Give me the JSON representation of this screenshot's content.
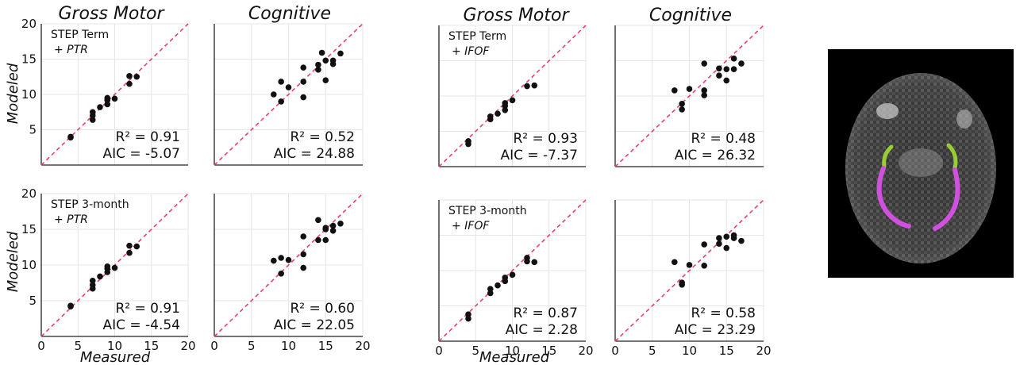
{
  "figure": {
    "group_titles": [
      "Gross Motor",
      "Cognitive",
      "Gross Motor",
      "Cognitive"
    ],
    "ylabel": "Modeled",
    "xlabel": "Measured"
  },
  "chart_data": [
    {
      "id": "term-ptr-gross",
      "type": "scatter",
      "title": "Gross Motor",
      "annotation": [
        "STEP Term",
        "+ PTR"
      ],
      "stats": [
        "R² = 0.91",
        "AIC = -5.07"
      ],
      "xlim": [
        0,
        20
      ],
      "ylim": [
        0,
        20
      ],
      "xticks": [],
      "yticks": [
        5,
        10,
        15,
        20
      ],
      "xlabel": "",
      "ylabel": "Modeled",
      "grid": true,
      "reference_line": "y = x",
      "points": [
        [
          4,
          4
        ],
        [
          4,
          3.9
        ],
        [
          7,
          6.4
        ],
        [
          7,
          7
        ],
        [
          7,
          7.5
        ],
        [
          8,
          8.2
        ],
        [
          9,
          8.6
        ],
        [
          9,
          9.2
        ],
        [
          9,
          9.5
        ],
        [
          10,
          9.4
        ],
        [
          12,
          11.5
        ],
        [
          12,
          12.6
        ],
        [
          13,
          12.5
        ]
      ]
    },
    {
      "id": "term-ptr-cog",
      "type": "scatter",
      "title": "Cognitive",
      "annotation": [],
      "stats": [
        "R² = 0.52",
        "AIC = 24.88"
      ],
      "xlim": [
        0,
        20
      ],
      "ylim": [
        0,
        20
      ],
      "xticks": [],
      "yticks": [],
      "xlabel": "",
      "ylabel": "",
      "grid": true,
      "reference_line": "y = x",
      "points": [
        [
          8,
          10
        ],
        [
          9,
          9
        ],
        [
          9,
          11.8
        ],
        [
          10,
          11
        ],
        [
          12,
          9.6
        ],
        [
          12,
          11.8
        ],
        [
          12,
          13.8
        ],
        [
          14,
          13.5
        ],
        [
          14,
          14.2
        ],
        [
          14.5,
          15.9
        ],
        [
          15,
          14.8
        ],
        [
          15,
          12
        ],
        [
          16,
          14.3
        ],
        [
          16,
          14.8
        ],
        [
          17,
          15.8
        ]
      ]
    },
    {
      "id": "m3-ptr-gross",
      "type": "scatter",
      "title": "",
      "annotation": [
        "STEP 3-month",
        "+ PTR"
      ],
      "stats": [
        "R² = 0.91",
        "AIC = -4.54"
      ],
      "xlim": [
        0,
        20
      ],
      "ylim": [
        0,
        20
      ],
      "xticks": [
        0,
        5,
        10,
        15,
        20
      ],
      "yticks": [
        5,
        10,
        15,
        20
      ],
      "xlabel": "Measured",
      "ylabel": "Modeled",
      "grid": true,
      "reference_line": "y = x",
      "points": [
        [
          4,
          4.2
        ],
        [
          4,
          4.3
        ],
        [
          7,
          6.7
        ],
        [
          7,
          7.2
        ],
        [
          7,
          7.8
        ],
        [
          8,
          8.4
        ],
        [
          9,
          9
        ],
        [
          9,
          9.5
        ],
        [
          9,
          9.8
        ],
        [
          10,
          9.6
        ],
        [
          12,
          11.7
        ],
        [
          12,
          12.7
        ],
        [
          13,
          12.6
        ]
      ]
    },
    {
      "id": "m3-ptr-cog",
      "type": "scatter",
      "title": "",
      "annotation": [],
      "stats": [
        "R² = 0.60",
        "AIC = 22.05"
      ],
      "xlim": [
        0,
        20
      ],
      "ylim": [
        0,
        20
      ],
      "xticks": [
        0,
        5,
        10,
        15,
        20
      ],
      "yticks": [],
      "xlabel": "",
      "ylabel": "",
      "grid": true,
      "reference_line": "y = x",
      "points": [
        [
          8,
          10.6
        ],
        [
          9,
          8.8
        ],
        [
          9,
          11
        ],
        [
          10,
          10.7
        ],
        [
          12,
          9.6
        ],
        [
          12,
          11.5
        ],
        [
          12,
          14
        ],
        [
          14,
          13.5
        ],
        [
          14,
          16.3
        ],
        [
          15,
          13.5
        ],
        [
          15,
          15
        ],
        [
          15,
          15.2
        ],
        [
          16,
          14.8
        ],
        [
          16,
          15.5
        ],
        [
          17,
          15.8
        ]
      ]
    },
    {
      "id": "term-ifof-gross",
      "type": "scatter",
      "title": "Gross Motor",
      "annotation": [
        "STEP Term",
        "+ IFOF"
      ],
      "stats": [
        "R² = 0.93",
        "AIC = -7.37"
      ],
      "xlim": [
        0,
        20
      ],
      "ylim": [
        0,
        20
      ],
      "xticks": [],
      "yticks": [],
      "xlabel": "",
      "ylabel": "",
      "grid": true,
      "reference_line": "y = x",
      "points": [
        [
          4,
          3.2
        ],
        [
          4,
          3.6
        ],
        [
          7,
          6.7
        ],
        [
          7,
          7.1
        ],
        [
          8,
          7.5
        ],
        [
          9,
          8
        ],
        [
          9,
          8.6
        ],
        [
          9,
          9
        ],
        [
          10,
          9.4
        ],
        [
          12,
          11.4
        ],
        [
          13,
          11.5
        ]
      ]
    },
    {
      "id": "term-ifof-cog",
      "type": "scatter",
      "title": "Cognitive",
      "annotation": [],
      "stats": [
        "R² = 0.48",
        "AIC = 26.32"
      ],
      "xlim": [
        0,
        20
      ],
      "ylim": [
        0,
        20
      ],
      "xticks": [],
      "yticks": [],
      "xlabel": "",
      "ylabel": "",
      "grid": true,
      "reference_line": "y = x",
      "points": [
        [
          8,
          10.8
        ],
        [
          9,
          8.1
        ],
        [
          9,
          8.9
        ],
        [
          10,
          11
        ],
        [
          12,
          10.1
        ],
        [
          12,
          10.8
        ],
        [
          12,
          14.6
        ],
        [
          14,
          12.9
        ],
        [
          14,
          13.9
        ],
        [
          15,
          12.2
        ],
        [
          15,
          13.8
        ],
        [
          16,
          13.8
        ],
        [
          16,
          15.3
        ],
        [
          17,
          14.6
        ]
      ]
    },
    {
      "id": "m3-ifof-gross",
      "type": "scatter",
      "title": "",
      "annotation": [
        "STEP 3-month",
        "+ IFOF"
      ],
      "stats": [
        "R² = 0.87",
        "AIC = 2.28"
      ],
      "xlim": [
        0,
        20
      ],
      "ylim": [
        0,
        20
      ],
      "xticks": [
        0,
        5,
        10,
        15,
        20
      ],
      "yticks": [],
      "xlabel": "Measured",
      "ylabel": "",
      "grid": true,
      "reference_line": "y = x",
      "points": [
        [
          4,
          3.2
        ],
        [
          4,
          3.8
        ],
        [
          7,
          6.8
        ],
        [
          7,
          7.4
        ],
        [
          8,
          7.9
        ],
        [
          9,
          8.5
        ],
        [
          9,
          9
        ],
        [
          10,
          9.4
        ],
        [
          12,
          11.3
        ],
        [
          12,
          11.8
        ],
        [
          13,
          11.2
        ]
      ]
    },
    {
      "id": "m3-ifof-cog",
      "type": "scatter",
      "title": "",
      "annotation": [],
      "stats": [
        "R² = 0.58",
        "AIC = 23.29"
      ],
      "xlim": [
        0,
        20
      ],
      "ylim": [
        0,
        20
      ],
      "xticks": [
        0,
        5,
        10,
        15,
        20
      ],
      "yticks": [],
      "xlabel": "",
      "ylabel": "",
      "grid": true,
      "reference_line": "y = x",
      "points": [
        [
          8,
          11.2
        ],
        [
          9,
          8
        ],
        [
          9,
          8.3
        ],
        [
          10,
          10.8
        ],
        [
          12,
          10.7
        ],
        [
          12,
          13.7
        ],
        [
          14,
          14.6
        ],
        [
          14,
          13.8
        ],
        [
          15,
          13.2
        ],
        [
          15,
          14.8
        ],
        [
          16,
          14.6
        ],
        [
          16,
          15
        ],
        [
          17,
          14.2
        ]
      ]
    }
  ],
  "brain_image": {
    "description_colors": {
      "background": "#000000",
      "tract_upper": "#9acd32",
      "tract_lower": "#d050e0"
    }
  }
}
